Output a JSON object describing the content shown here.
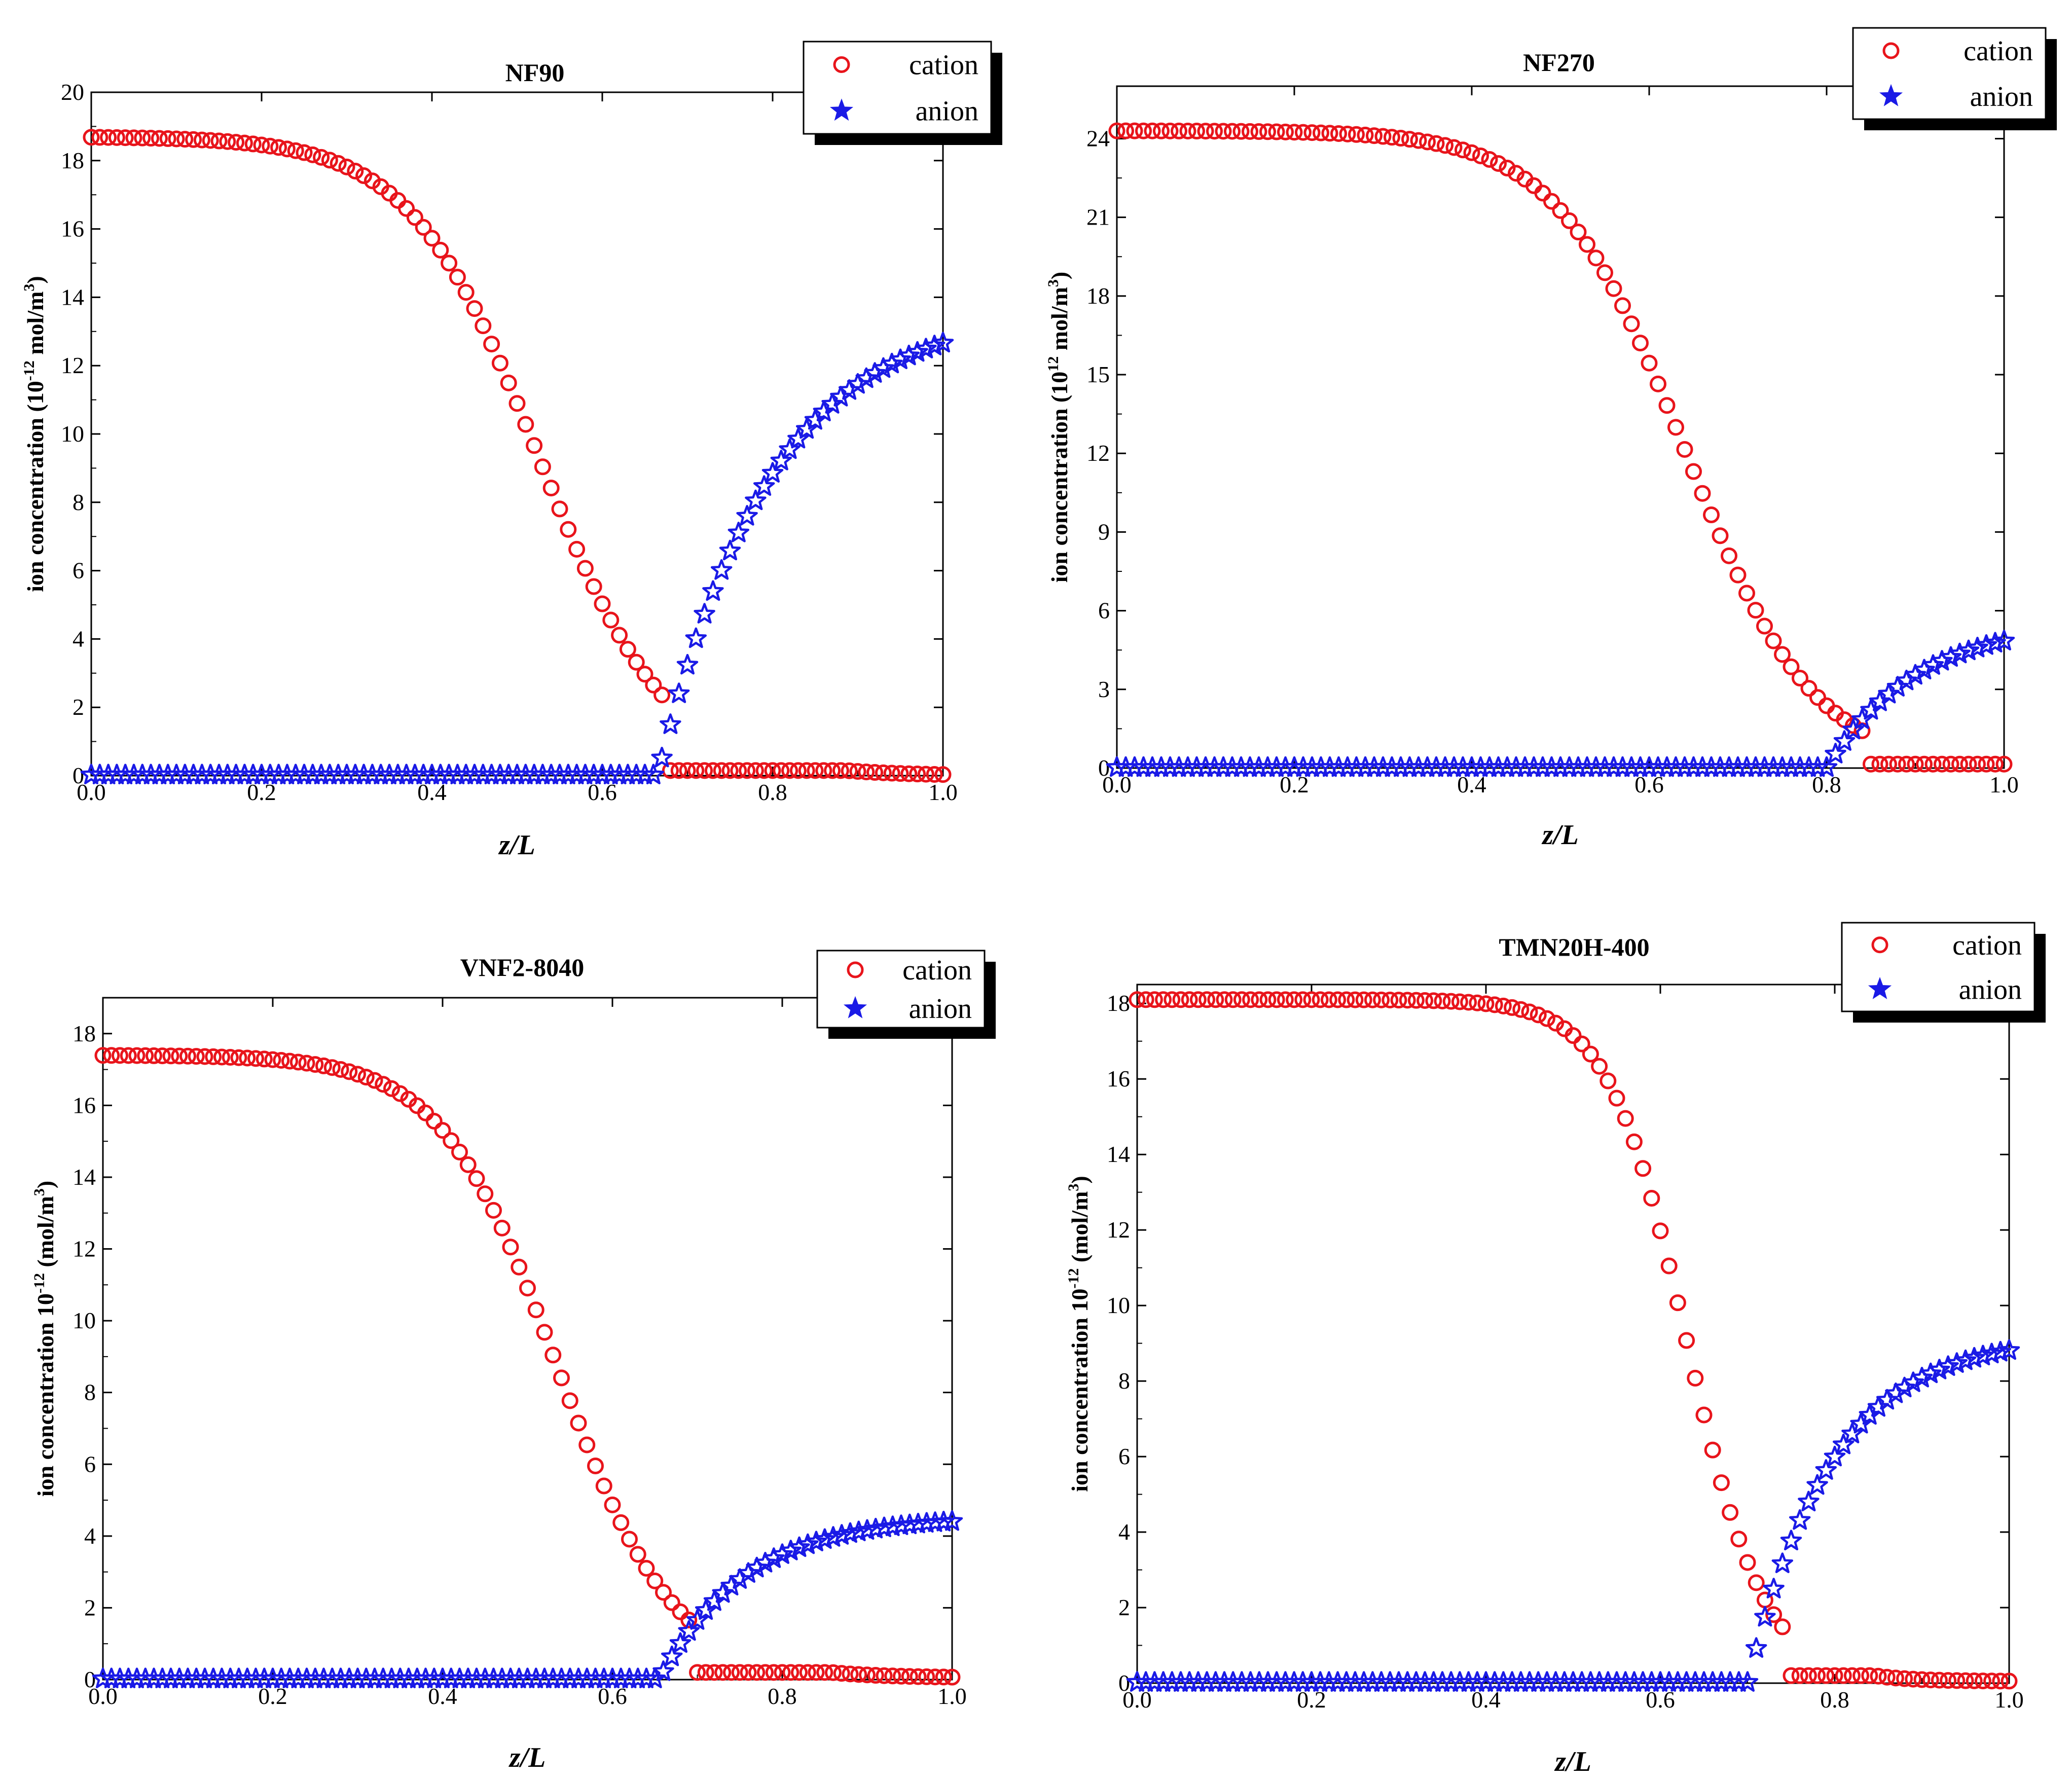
{
  "chart_data": [
    {
      "type": "scatter",
      "title": "NF90",
      "xlabel": "z/L",
      "ylabel": {
        "pre": "ion concentration (10",
        "sup": "-12",
        "mid": " mol/m",
        "sup2": "3",
        "post": ")"
      },
      "xlim": [
        0,
        1
      ],
      "ylim": [
        0,
        20
      ],
      "xticks": [
        "0.0",
        "0.2",
        "0.4",
        "0.6",
        "0.8",
        "1.0"
      ],
      "yticks": [
        "0",
        "2",
        "4",
        "6",
        "8",
        "10",
        "12",
        "14",
        "16",
        "18",
        "20"
      ],
      "legend": {
        "position": "top-right",
        "entries": [
          "cation",
          "anion"
        ]
      },
      "series": [
        {
          "name": "cation",
          "marker": "circle",
          "color": "#e8141b",
          "model": {
            "start": 18.7,
            "end": 0.0,
            "mid": 0.525,
            "k": 0.075,
            "floor_after": 0.67
          }
        },
        {
          "name": "anion",
          "marker": "star",
          "color": "#1a1ae6",
          "model": {
            "start": 0.0,
            "end": 13.7,
            "onset": 0.665,
            "rise": 0.13
          }
        }
      ]
    },
    {
      "type": "scatter",
      "title": "NF270",
      "xlabel": "z/L",
      "ylabel": {
        "pre": "ion concentration (10",
        "sup": "12",
        "mid": " mol/m",
        "sup2": "3",
        "post": ")"
      },
      "xlim": [
        0,
        1
      ],
      "ylim": [
        0,
        26
      ],
      "xticks": [
        "0.0",
        "0.2",
        "0.4",
        "0.6",
        "0.8",
        "1.0"
      ],
      "yticks": [
        "0",
        "3",
        "6",
        "9",
        "12",
        "15",
        "18",
        "21",
        "24"
      ],
      "legend": {
        "position": "top-right",
        "entries": [
          "cation",
          "anion"
        ]
      },
      "series": [
        {
          "name": "cation",
          "marker": "circle",
          "color": "#e8141b",
          "model": {
            "start": 24.3,
            "end": 0.0,
            "mid": 0.64,
            "k": 0.072,
            "floor_after": 0.84
          }
        },
        {
          "name": "anion",
          "marker": "star",
          "color": "#1a1ae6",
          "model": {
            "start": 0.0,
            "end": 5.6,
            "onset": 0.8,
            "rise": 0.1
          }
        }
      ]
    },
    {
      "type": "scatter",
      "title": "VNF2-8040",
      "xlabel": "z/L",
      "ylabel": {
        "pre": "ion concentration 10",
        "sup": "-12",
        "mid": " (mol/m",
        "sup2": "3",
        "post": ")"
      },
      "xlim": [
        0,
        1
      ],
      "ylim": [
        0,
        19
      ],
      "xticks": [
        "0.0",
        "0.2",
        "0.4",
        "0.6",
        "0.8",
        "1.0"
      ],
      "yticks": [
        "0",
        "2",
        "4",
        "6",
        "8",
        "10",
        "12",
        "14",
        "16",
        "18"
      ],
      "legend": {
        "position": "top-right",
        "entries": [
          "cation",
          "anion"
        ]
      },
      "series": [
        {
          "name": "cation",
          "marker": "circle",
          "color": "#e8141b",
          "model": {
            "start": 17.4,
            "end": 0.05,
            "mid": 0.535,
            "k": 0.068,
            "floor_after": 0.69
          }
        },
        {
          "name": "anion",
          "marker": "star",
          "color": "#1a1ae6",
          "model": {
            "start": 0.0,
            "end": 4.55,
            "onset": 0.655,
            "rise": 0.1
          }
        }
      ]
    },
    {
      "type": "scatter",
      "title": "TMN20H-400",
      "xlabel": "z/L",
      "ylabel": {
        "pre": "ion concentration 10",
        "sup": "-12",
        "mid": " (mol/m",
        "sup2": "3",
        "post": ")"
      },
      "xlim": [
        0,
        1
      ],
      "ylim": [
        0,
        18.5
      ],
      "xticks": [
        "0.0",
        "0.2",
        "0.4",
        "0.6",
        "0.8",
        "1.0"
      ],
      "yticks": [
        "0",
        "2",
        "4",
        "6",
        "8",
        "10",
        "12",
        "14",
        "16",
        "18"
      ],
      "legend": {
        "position": "top-right",
        "entries": [
          "cation",
          "anion"
        ]
      },
      "series": [
        {
          "name": "cation",
          "marker": "circle",
          "color": "#e8141b",
          "model": {
            "start": 18.1,
            "end": 0.05,
            "mid": 0.63,
            "k": 0.045,
            "floor_after": 0.74
          }
        },
        {
          "name": "anion",
          "marker": "star",
          "color": "#1a1ae6",
          "model": {
            "start": 0.0,
            "end": 9.2,
            "onset": 0.7,
            "rise": 0.095
          }
        }
      ]
    }
  ]
}
